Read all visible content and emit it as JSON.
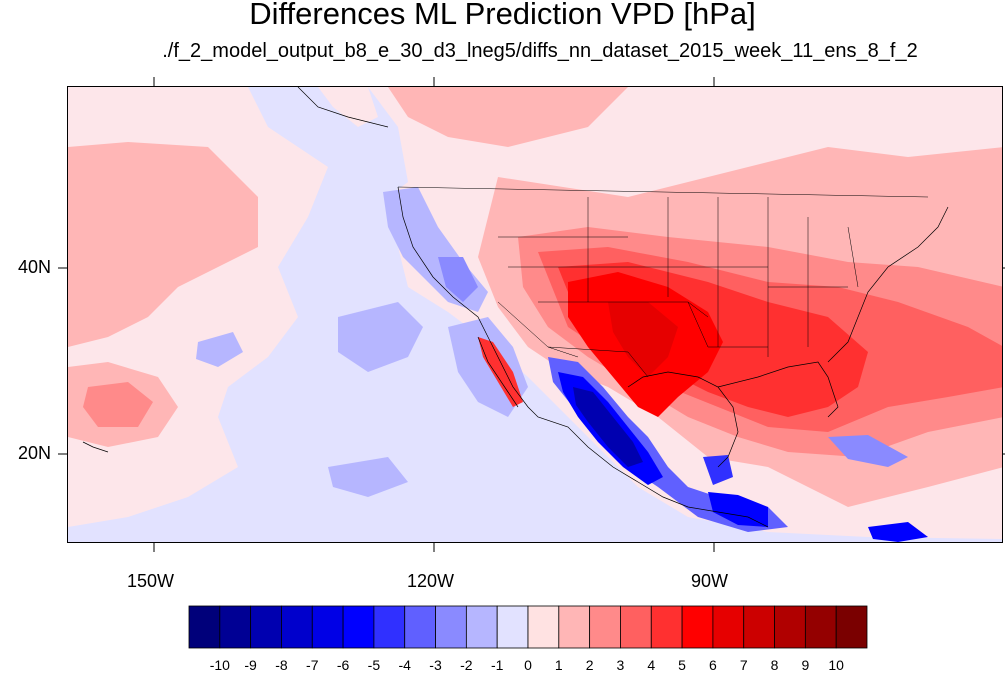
{
  "title": "Differences ML Prediction VPD [hPa]",
  "subtitle": "./f_2_model_output_b8_e_30_d3_lneg5/diffs_nn_dataset_2015_week_11_ens_8_f_2",
  "axes": {
    "lat_labels": [
      "40N",
      "20N"
    ],
    "lon_labels": [
      "150W",
      "120W",
      "90W"
    ]
  },
  "colorbar": {
    "labels": [
      "-10",
      "-9",
      "-8",
      "-7",
      "-6",
      "-5",
      "-4",
      "-3",
      "-2",
      "-1",
      "0",
      "1",
      "2",
      "3",
      "4",
      "5",
      "6",
      "7",
      "8",
      "9",
      "10"
    ],
    "colors": [
      "#00007a",
      "#000094",
      "#0000b0",
      "#0000cc",
      "#0000e6",
      "#0000ff",
      "#3030ff",
      "#6060ff",
      "#8a8aff",
      "#b6b6ff",
      "#e2e2ff",
      "#ffe2e2",
      "#ffb6b6",
      "#ff8a8a",
      "#ff6060",
      "#ff3030",
      "#ff0000",
      "#e60000",
      "#cc0000",
      "#b00000",
      "#940000",
      "#7a0000"
    ]
  },
  "map": {
    "region": "North America and eastern Pacific",
    "lon_range": [
      -160,
      -60
    ],
    "lat_range": [
      10,
      59
    ],
    "background_class": "0 to 1",
    "features": [
      {
        "name": "southern-plains-positive-max",
        "class": "6 to 7"
      },
      {
        "name": "southeast-us-positive",
        "class": "4 to 5"
      },
      {
        "name": "mexico-pacific-coast-negative-min",
        "class": "-8 to -7"
      },
      {
        "name": "eastern-pacific-negative",
        "class": "-1 to 0"
      },
      {
        "name": "central-pacific-positive",
        "class": "1 to 2"
      }
    ]
  }
}
